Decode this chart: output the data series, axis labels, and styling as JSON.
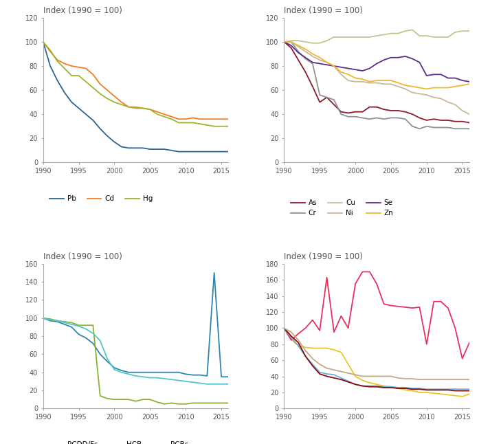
{
  "years": [
    1990,
    1991,
    1992,
    1993,
    1994,
    1995,
    1996,
    1997,
    1998,
    1999,
    2000,
    2001,
    2002,
    2003,
    2004,
    2005,
    2006,
    2007,
    2008,
    2009,
    2010,
    2011,
    2012,
    2013,
    2014,
    2015,
    2016
  ],
  "Pb": [
    100,
    80,
    68,
    58,
    50,
    45,
    40,
    35,
    28,
    22,
    17,
    13,
    12,
    12,
    12,
    11,
    11,
    11,
    10,
    9,
    9,
    9,
    9,
    9,
    9,
    9,
    9
  ],
  "Cd": [
    100,
    92,
    85,
    82,
    80,
    79,
    78,
    73,
    65,
    60,
    55,
    50,
    46,
    45,
    45,
    44,
    42,
    40,
    38,
    36,
    36,
    37,
    36,
    36,
    36,
    36,
    36
  ],
  "Hg": [
    100,
    93,
    84,
    78,
    72,
    72,
    67,
    62,
    57,
    53,
    50,
    48,
    46,
    46,
    45,
    44,
    40,
    38,
    36,
    33,
    33,
    33,
    32,
    31,
    30,
    30,
    30
  ],
  "As": [
    100,
    95,
    85,
    75,
    63,
    50,
    54,
    48,
    42,
    41,
    42,
    42,
    46,
    46,
    44,
    43,
    43,
    42,
    40,
    37,
    35,
    36,
    35,
    35,
    34,
    34,
    33
  ],
  "Cr": [
    100,
    100,
    92,
    86,
    82,
    56,
    54,
    52,
    40,
    38,
    38,
    37,
    36,
    37,
    36,
    37,
    37,
    36,
    30,
    28,
    30,
    29,
    29,
    29,
    28,
    28,
    28
  ],
  "Cu": [
    100,
    101,
    101,
    100,
    99,
    99,
    101,
    104,
    104,
    104,
    104,
    104,
    104,
    105,
    106,
    107,
    107,
    109,
    110,
    105,
    105,
    104,
    104,
    104,
    108,
    109,
    109
  ],
  "Ni": [
    100,
    100,
    96,
    92,
    88,
    85,
    83,
    80,
    73,
    68,
    67,
    67,
    66,
    66,
    65,
    65,
    63,
    61,
    58,
    57,
    56,
    54,
    53,
    50,
    48,
    43,
    40
  ],
  "Se": [
    100,
    97,
    91,
    87,
    83,
    82,
    81,
    80,
    79,
    78,
    77,
    76,
    78,
    82,
    85,
    87,
    87,
    88,
    86,
    83,
    72,
    73,
    73,
    70,
    70,
    68,
    67
  ],
  "Zn": [
    100,
    100,
    97,
    94,
    90,
    87,
    83,
    80,
    75,
    73,
    70,
    69,
    67,
    68,
    68,
    68,
    66,
    64,
    63,
    62,
    61,
    62,
    62,
    62,
    63,
    64,
    65
  ],
  "PCDD_Fs": [
    100,
    97,
    96,
    93,
    90,
    82,
    78,
    72,
    60,
    52,
    45,
    42,
    40,
    40,
    40,
    40,
    40,
    40,
    40,
    40,
    38,
    37,
    37,
    36,
    150,
    35,
    35
  ],
  "HCB": [
    100,
    99,
    97,
    96,
    95,
    92,
    92,
    92,
    14,
    11,
    10,
    10,
    10,
    8,
    10,
    10,
    7,
    5,
    6,
    5,
    5,
    6,
    6,
    6,
    6,
    6,
    6
  ],
  "PCBs": [
    100,
    98,
    97,
    95,
    93,
    91,
    88,
    83,
    75,
    55,
    43,
    40,
    38,
    36,
    35,
    34,
    34,
    33,
    32,
    31,
    30,
    29,
    28,
    27,
    27,
    27,
    27
  ],
  "TotalPAHs": [
    100,
    86,
    78,
    76,
    75,
    75,
    75,
    73,
    70,
    55,
    40,
    35,
    32,
    30,
    28,
    27,
    25,
    23,
    22,
    20,
    20,
    19,
    18,
    17,
    16,
    15,
    18
  ],
  "BaP": [
    100,
    85,
    93,
    100,
    110,
    97,
    163,
    95,
    115,
    100,
    155,
    170,
    170,
    155,
    130,
    128,
    127,
    126,
    125,
    126,
    80,
    133,
    133,
    125,
    100,
    62,
    82
  ],
  "BbF": [
    100,
    88,
    78,
    65,
    55,
    45,
    43,
    42,
    38,
    34,
    30,
    28,
    28,
    28,
    27,
    27,
    26,
    26,
    25,
    25,
    24,
    24,
    24,
    24,
    24,
    24,
    24
  ],
  "BkF": [
    100,
    90,
    82,
    65,
    53,
    43,
    40,
    38,
    36,
    33,
    30,
    28,
    27,
    27,
    26,
    26,
    25,
    25,
    24,
    24,
    23,
    23,
    23,
    23,
    22,
    22,
    22
  ],
  "IP": [
    100,
    95,
    85,
    72,
    62,
    55,
    50,
    48,
    46,
    44,
    42,
    40,
    40,
    40,
    40,
    40,
    38,
    37,
    37,
    36,
    36,
    36,
    36,
    36,
    36,
    36,
    36
  ],
  "colors": {
    "Pb": "#2a6496",
    "Cd": "#f47d20",
    "Hg": "#9db52a",
    "As": "#8b1a2e",
    "Cr": "#909090",
    "Cu": "#b5cc8e",
    "Ni": "#c8b89a",
    "Se": "#5b2d8e",
    "Zn": "#f0b830",
    "PCDD_Fs": "#2e86ab",
    "HCB": "#8ab234",
    "PCBs": "#50c8c8",
    "TotalPAHs": "#e8c830",
    "BaP": "#e83060",
    "BbF": "#6baed6",
    "BkF": "#8b0a0a",
    "IP": "#c8a882"
  }
}
